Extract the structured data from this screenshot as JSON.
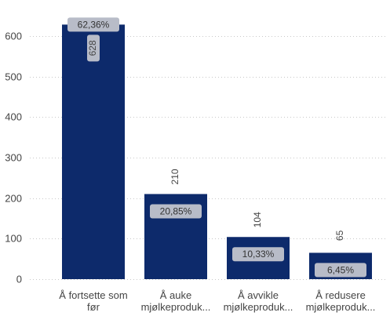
{
  "chart_data": {
    "type": "bar",
    "categories": [
      [
        "Å fortsette som",
        "før"
      ],
      [
        "Å auke",
        "mjølkeproduk..."
      ],
      [
        "Å avvikle",
        "mjølkeproduk..."
      ],
      [
        "Å redusere",
        "mjølkeproduk..."
      ]
    ],
    "values": [
      628,
      210,
      104,
      65
    ],
    "value_labels": [
      "628",
      "210",
      "104",
      "65"
    ],
    "percent_labels": [
      "62,36%",
      "20,85%",
      "10,33%",
      "6,45%"
    ],
    "yticks": [
      0,
      100,
      200,
      300,
      400,
      500,
      600
    ],
    "ylim": [
      0,
      650
    ],
    "title": "",
    "xlabel": "",
    "ylabel": "",
    "grid": true,
    "legend": "none",
    "bar_color": "#0d2a6b",
    "badge_color": "#b8bcc8"
  }
}
